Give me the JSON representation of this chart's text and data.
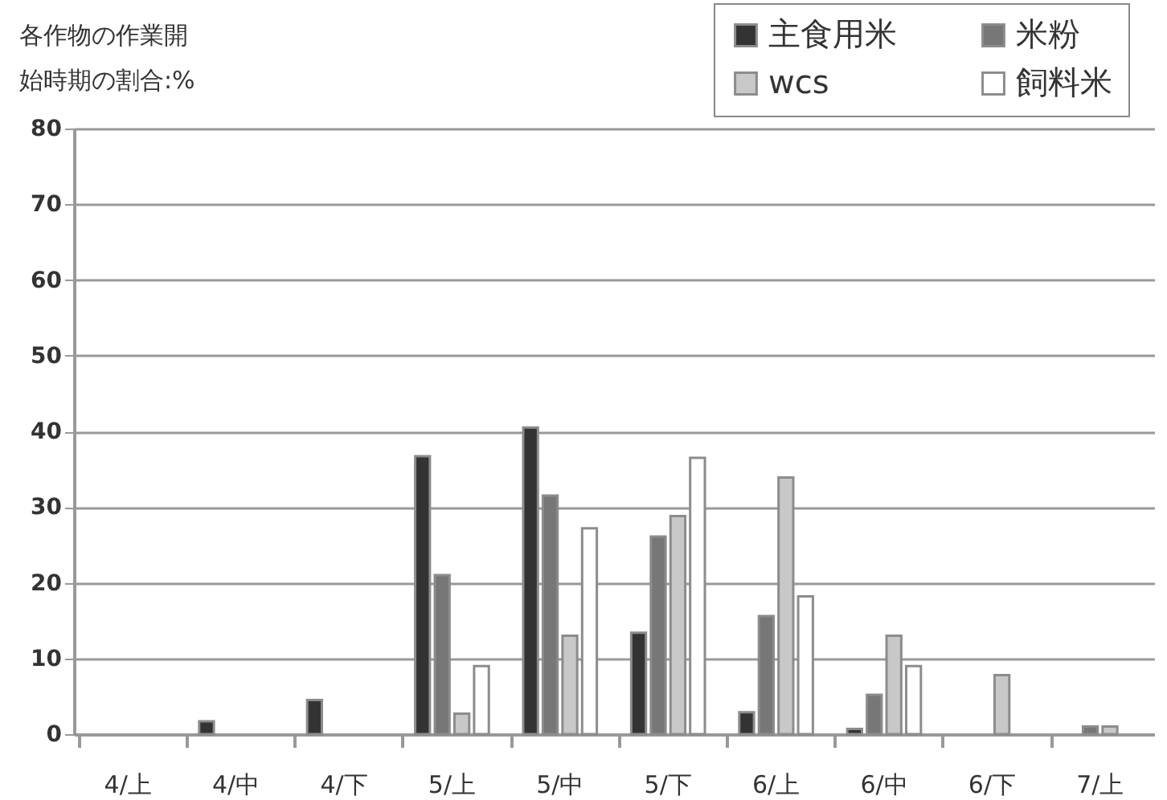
{
  "chart_data": {
    "type": "bar",
    "title": "各作物の作業開始時期の割合:%",
    "categories": [
      "4/上",
      "4/中",
      "4/下",
      "5/上",
      "5/中",
      "5/下",
      "6/上",
      "6/中",
      "6/下",
      "7/上"
    ],
    "series": [
      {
        "name": "主食用米",
        "color": "#333333",
        "values": [
          null,
          1.7,
          4.5,
          36.7,
          40.5,
          13.4,
          2.9,
          0.7,
          null,
          null
        ]
      },
      {
        "name": "米粉",
        "color": "#777777",
        "values": [
          null,
          null,
          null,
          21,
          31.5,
          26.1,
          15.6,
          5.2,
          null,
          1
        ]
      },
      {
        "name": "wcs",
        "color": "#c8c8c8",
        "values": [
          null,
          null,
          null,
          2.7,
          13,
          28.8,
          33.9,
          13,
          7.8,
          1
        ]
      },
      {
        "name": "飼料米",
        "color": "#ffffff",
        "values": [
          null,
          null,
          null,
          9,
          27.2,
          36.5,
          18.2,
          9,
          null,
          null
        ]
      }
    ],
    "ylim": [
      0,
      80
    ],
    "yticks": [
      0,
      10,
      20,
      30,
      40,
      50,
      60,
      70,
      80
    ],
    "grid": "y",
    "legend": "top right"
  }
}
